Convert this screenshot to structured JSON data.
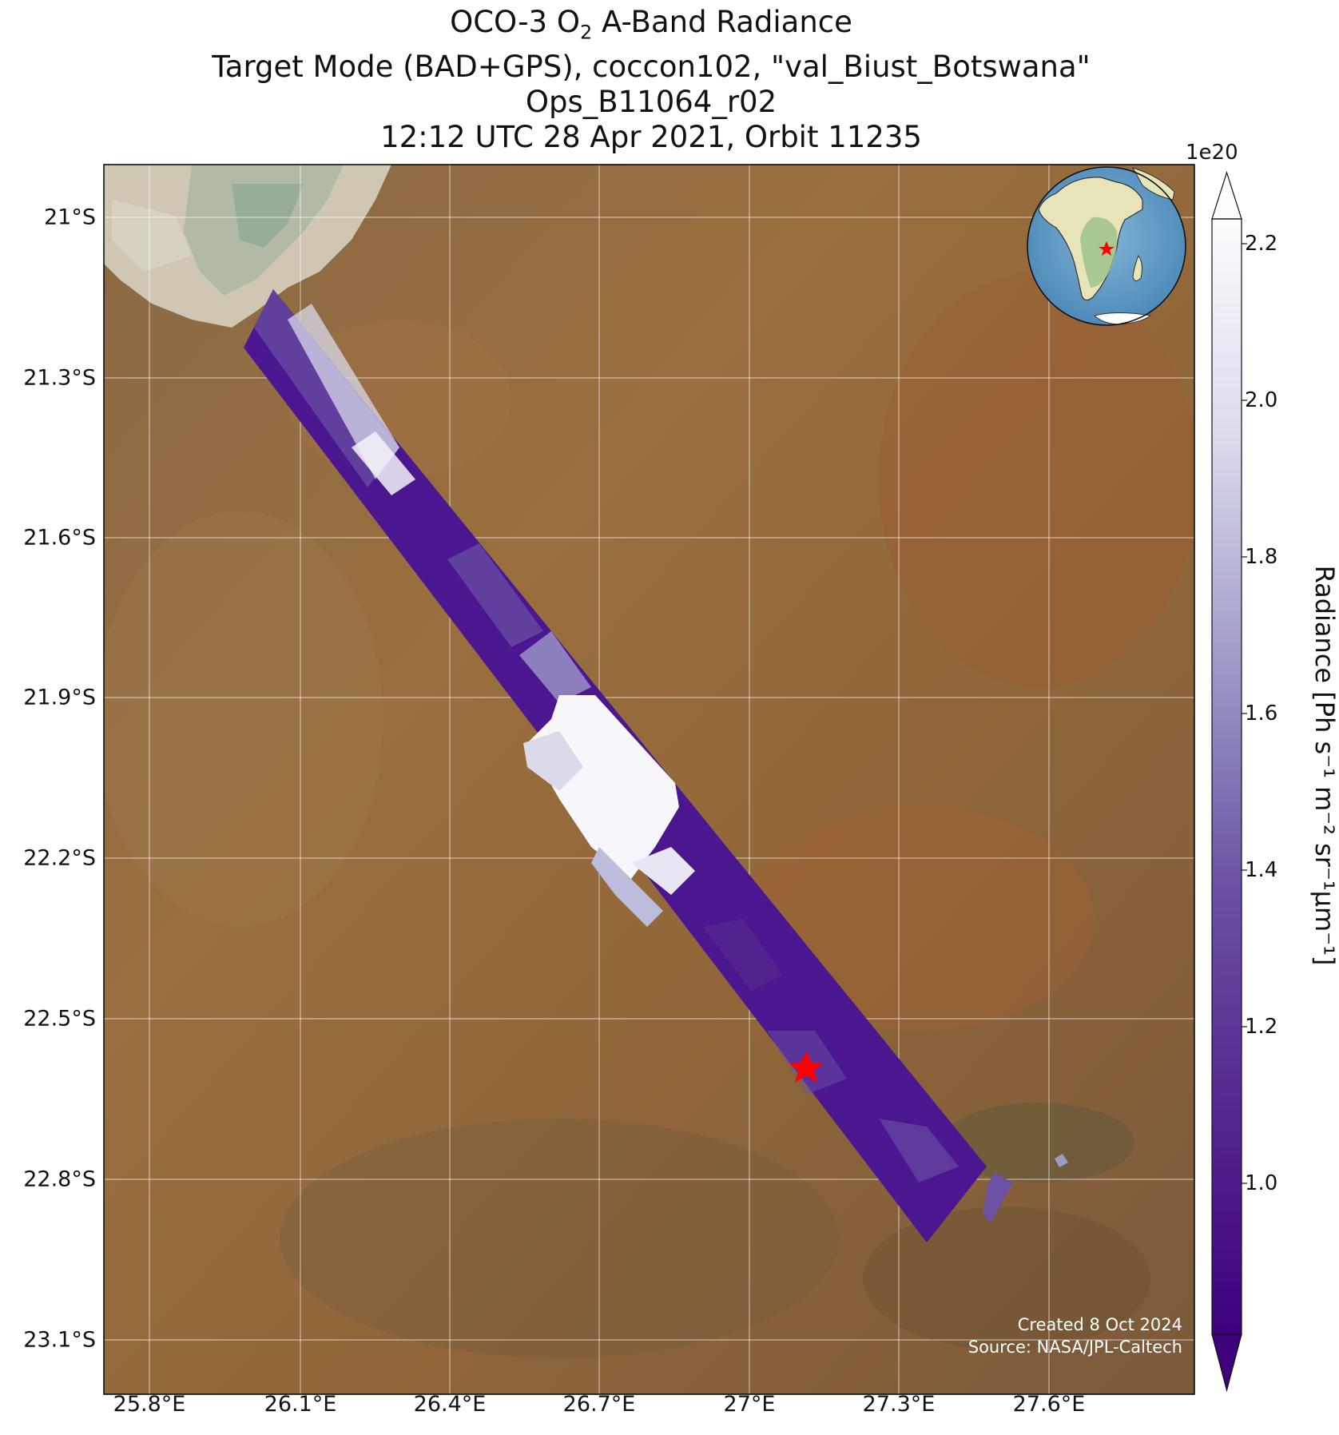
{
  "title": {
    "line1_prefix": "OCO-3 O",
    "line1_sub": "2",
    "line1_suffix": " A-Band Radiance",
    "line2": "Target Mode (BAD+GPS), coccon102, \"val_Biust_Botswana\"",
    "line3": "Ops_B11064_r02",
    "line4": "12:12 UTC 28 Apr 2021, Orbit 11235"
  },
  "axes": {
    "lat_ticks": [
      "21°S",
      "21.3°S",
      "21.6°S",
      "21.9°S",
      "22.2°S",
      "22.5°S",
      "22.8°S",
      "23.1°S"
    ],
    "lon_ticks": [
      "25.8°E",
      "26.1°E",
      "26.4°E",
      "26.7°E",
      "27°E",
      "27.3°E",
      "27.6°E"
    ]
  },
  "colorbar": {
    "exponent": "1e20",
    "ticks": [
      "2.2",
      "2.0",
      "1.8",
      "1.6",
      "1.4",
      "1.2",
      "1.0"
    ],
    "label": "Radiance [Ph s⁻¹ m⁻² sr⁻¹μm⁻¹]",
    "colormap": "Purples_r",
    "low_color": "#3f007d",
    "high_color": "#fcfbfd"
  },
  "site_marker": {
    "shape": "star",
    "color": "#ff0000"
  },
  "credits": {
    "created": "Created 8 Oct 2024",
    "source": "Source: NASA/JPL-Caltech"
  },
  "inset_globe": {
    "icon": "globe-icon",
    "marker": "red-star"
  }
}
